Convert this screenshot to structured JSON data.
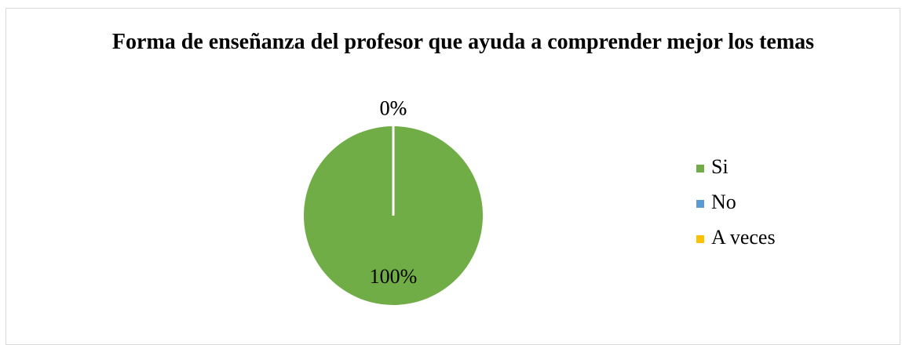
{
  "chart_data": {
    "type": "pie",
    "title": "Forma de enseñanza del profesor que ayuda a comprender mejor los temas",
    "categories": [
      "Si",
      "No",
      "A veces"
    ],
    "values": [
      100,
      0,
      0
    ],
    "value_labels": [
      "100%",
      "0%",
      "0%"
    ],
    "colors": [
      "#70ad47",
      "#5b9bd5",
      "#ffc000"
    ],
    "legend": "right"
  }
}
